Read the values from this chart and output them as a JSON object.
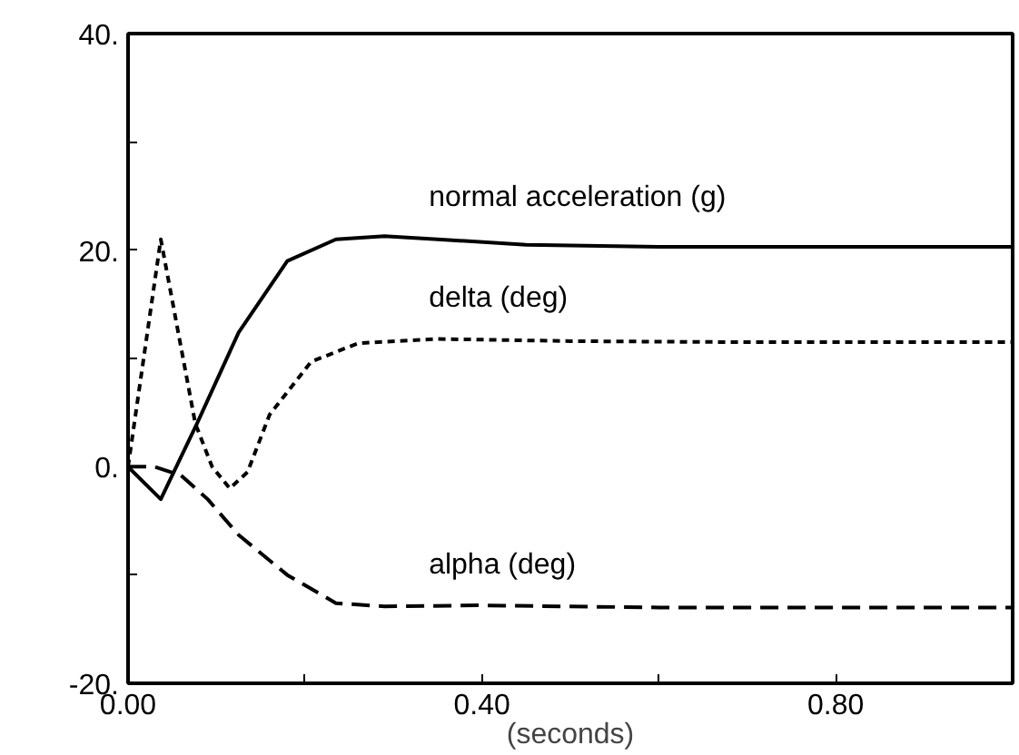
{
  "chart_data": {
    "type": "line",
    "xlabel": "(seconds)",
    "xlim": [
      0,
      1.0
    ],
    "ylim": [
      -20,
      40
    ],
    "xticks": [
      {
        "value": 0,
        "label": "0.00"
      },
      {
        "value": 0.2,
        "label": null
      },
      {
        "value": 0.4,
        "label": "0.40"
      },
      {
        "value": 0.6,
        "label": null
      },
      {
        "value": 0.8,
        "label": "0.80"
      }
    ],
    "yticks": [
      {
        "value": -20,
        "label": "-20."
      },
      {
        "value": -10,
        "label": null
      },
      {
        "value": 0,
        "label": "0."
      },
      {
        "value": 10,
        "label": null
      },
      {
        "value": 20,
        "label": "20."
      },
      {
        "value": 30,
        "label": null
      },
      {
        "value": 40,
        "label": "40."
      }
    ],
    "grid": false,
    "series": [
      {
        "name": "normal acceleration (g)",
        "color": "#000000",
        "line_style": "solid",
        "x": [
          0,
          0.037,
          0.078,
          0.125,
          0.18,
          0.235,
          0.29,
          0.35,
          0.45,
          0.6,
          0.8,
          1.0
        ],
        "values": [
          0,
          -3,
          4,
          12.4,
          19,
          21,
          21.3,
          21,
          20.5,
          20.3,
          20.3,
          20.3
        ]
      },
      {
        "name": "delta (deg)",
        "color": "#000000",
        "line_style": "dotted",
        "x": [
          0,
          0.037,
          0.076,
          0.095,
          0.115,
          0.135,
          0.16,
          0.207,
          0.26,
          0.35,
          0.5,
          0.7,
          1.0
        ],
        "values": [
          0,
          21,
          4,
          0,
          -2,
          -0.5,
          4.8,
          9.7,
          11.4,
          11.8,
          11.6,
          11.5,
          11.5
        ]
      },
      {
        "name": "alpha (deg)",
        "color": "#000000",
        "line_style": "dashed",
        "x": [
          0,
          0.03,
          0.06,
          0.09,
          0.125,
          0.18,
          0.235,
          0.29,
          0.4,
          0.6,
          0.8,
          1.0
        ],
        "values": [
          0,
          0,
          -0.8,
          -3,
          -6.3,
          -10,
          -12.6,
          -12.9,
          -12.8,
          -13,
          -13,
          -13
        ]
      }
    ]
  }
}
